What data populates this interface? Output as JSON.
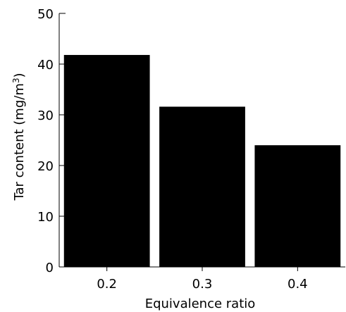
{
  "chart_data": {
    "type": "bar",
    "title": "",
    "xlabel": "Equivalence ratio",
    "ylabel_parts": {
      "main": "Tar content (mg/m",
      "superscript": "3",
      "close": ")"
    },
    "categories": [
      "0.2",
      "0.3",
      "0.4"
    ],
    "values": [
      41.8,
      31.6,
      24.0
    ],
    "ylim": [
      0,
      50
    ],
    "yticks": [
      0,
      10,
      20,
      30,
      40,
      50
    ],
    "grid": false,
    "legend": "none",
    "bar_color": "#000000"
  }
}
